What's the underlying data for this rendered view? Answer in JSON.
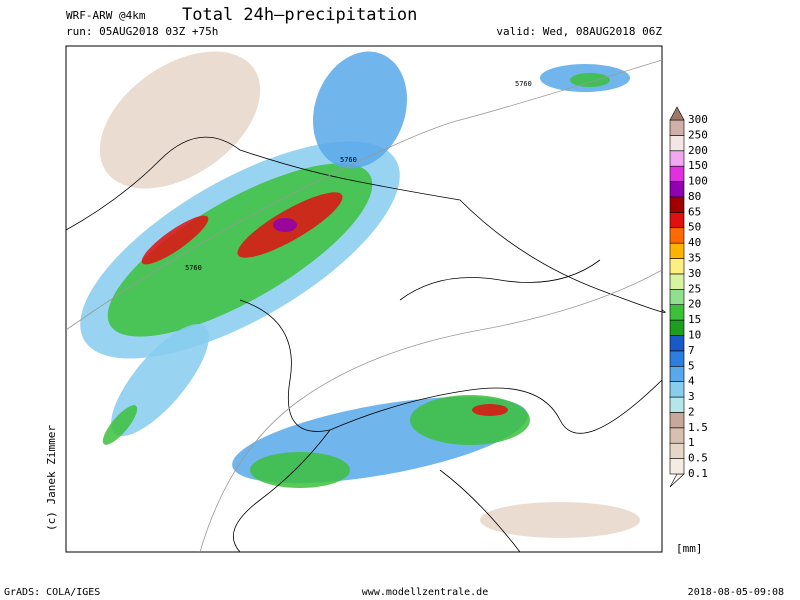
{
  "header": {
    "model": "WRF-ARW @4km",
    "title": "Total 24h–precipitation",
    "run": "run: 05AUG2018 03Z +75h",
    "valid": "valid: Wed, 08AUG2018 06Z"
  },
  "map": {
    "contour_labels": [
      "5760",
      "5760",
      "5760"
    ],
    "credit": "(c) Janek Zimmer"
  },
  "legend": {
    "unit": "[mm]",
    "levels": [
      {
        "label": "0.1",
        "color": "#f4ebe2"
      },
      {
        "label": "0.5",
        "color": "#e6d6c8"
      },
      {
        "label": "1",
        "color": "#d8c0b0"
      },
      {
        "label": "1.5",
        "color": "#c8a898"
      },
      {
        "label": "2",
        "color": "#b4e6ea"
      },
      {
        "label": "3",
        "color": "#86cdee"
      },
      {
        "label": "4",
        "color": "#58a8ea"
      },
      {
        "label": "5",
        "color": "#2c7ee0"
      },
      {
        "label": "7",
        "color": "#1a5ac8"
      },
      {
        "label": "10",
        "color": "#1e9e1e"
      },
      {
        "label": "15",
        "color": "#3cc03c"
      },
      {
        "label": "20",
        "color": "#90e090"
      },
      {
        "label": "25",
        "color": "#d8f4a0"
      },
      {
        "label": "30",
        "color": "#ffee80"
      },
      {
        "label": "35",
        "color": "#ffb400"
      },
      {
        "label": "40",
        "color": "#ff6a00"
      },
      {
        "label": "50",
        "color": "#e01010"
      },
      {
        "label": "65",
        "color": "#a00000"
      },
      {
        "label": "80",
        "color": "#9000b0"
      },
      {
        "label": "100",
        "color": "#e030e0"
      },
      {
        "label": "150",
        "color": "#f0a8f0"
      },
      {
        "label": "200",
        "color": "#f4e6e6"
      },
      {
        "label": "250",
        "color": "#d0b0a8"
      },
      {
        "label": "300",
        "color": "#a07868"
      }
    ]
  },
  "footer": {
    "left": "GrADS: COLA/IGES",
    "center": "www.modellzentrale.de",
    "right": "2018-08-05-09:08"
  }
}
